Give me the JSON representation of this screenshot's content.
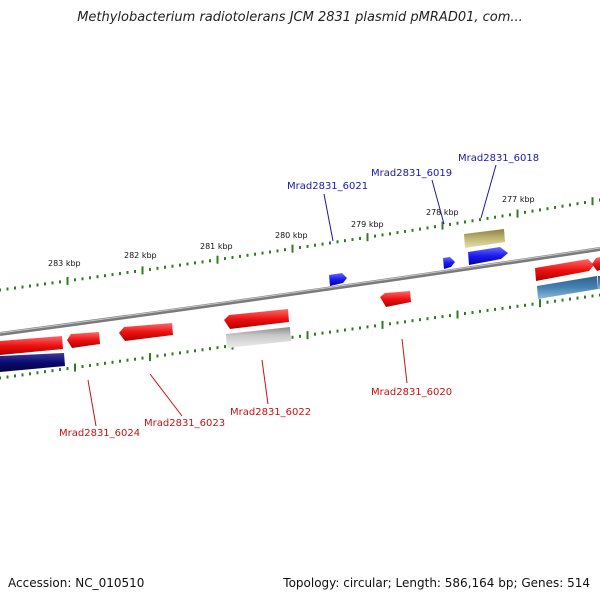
{
  "title": "Methylobacterium radiotolerans JCM 2831 plasmid pMRAD01, com...",
  "footer": {
    "accession": "Accession: NC_010510",
    "summary": "Topology: circular; Length: 586,164 bp; Genes: 514"
  },
  "ticks": [
    {
      "label": "283 kbp"
    },
    {
      "label": "282 kbp"
    },
    {
      "label": "281 kbp"
    },
    {
      "label": "280 kbp"
    },
    {
      "label": "279 kbp"
    },
    {
      "label": "278 kbp"
    },
    {
      "label": "277 kbp"
    }
  ],
  "genes": [
    {
      "label": "Mrad2831_6021",
      "strand": "forward"
    },
    {
      "label": "Mrad2831_6019",
      "strand": "forward"
    },
    {
      "label": "Mrad2831_6018",
      "strand": "forward"
    },
    {
      "label": "Mrad2831_6020",
      "strand": "reverse"
    },
    {
      "label": "Mrad2831_6022",
      "strand": "reverse"
    },
    {
      "label": "Mrad2831_6023",
      "strand": "reverse"
    },
    {
      "label": "Mrad2831_6024",
      "strand": "reverse"
    }
  ],
  "colors": {
    "forward_label": "#1a1aa8",
    "reverse_label": "#cc1111",
    "tick": "#2e7d1e",
    "backbone": "#808080",
    "red_gene": "#ee1111",
    "blue_gene": "#1a1aee",
    "navy_gene": "#0a0a70",
    "olive_gene": "#b8ae6a",
    "gray_gene": "#c8c8c8",
    "steel_gene": "#4682b4"
  }
}
